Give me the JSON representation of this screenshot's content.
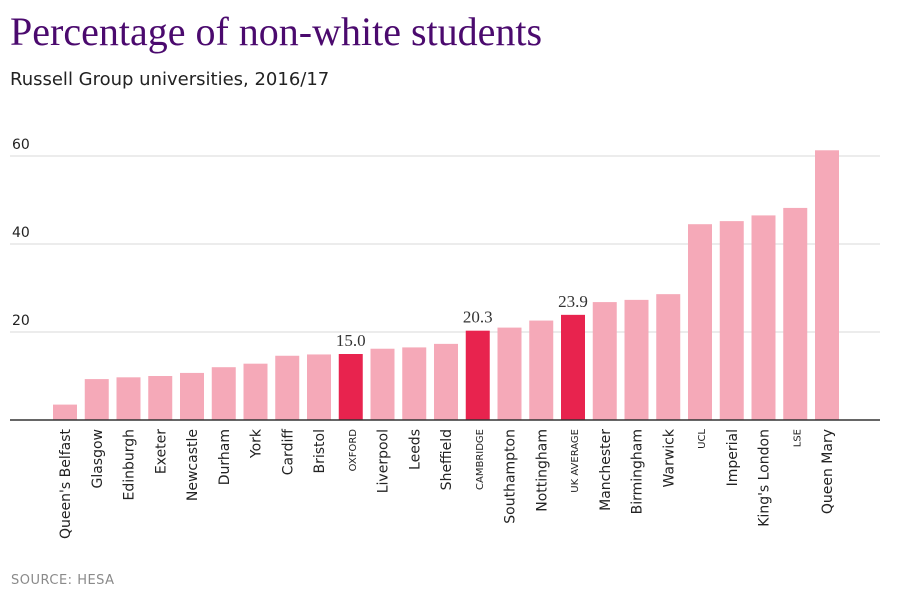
{
  "header": {
    "title": "Percentage of non-white students",
    "subtitle": "Russell Group universities, 2016/17"
  },
  "footer": {
    "source": "SOURCE: HESA"
  },
  "colors": {
    "bar": "#f5a9b8",
    "highlight": "#e8234e",
    "grid": "#d9d9d9",
    "axis": "#333333",
    "title": "#4b0a6e"
  },
  "chart_data": {
    "type": "bar",
    "title": "Percentage of non-white students",
    "subtitle": "Russell Group universities, 2016/17",
    "xlabel": "",
    "ylabel": "",
    "ylim": [
      0,
      60
    ],
    "yticks": [
      20,
      40,
      60
    ],
    "grid": true,
    "categories": [
      "Queen's Belfast",
      "Glasgow",
      "Edinburgh",
      "Exeter",
      "Newcastle",
      "Durham",
      "York",
      "Cardiff",
      "Bristol",
      "OXFORD",
      "Liverpool",
      "Leeds",
      "Sheffield",
      "CAMBRIDGE",
      "Southampton",
      "Nottingham",
      "UK AVERAGE",
      "Manchester",
      "Birmingham",
      "Warwick",
      "UCL",
      "Imperial",
      "King's London",
      "LSE",
      "Queen Mary"
    ],
    "values": [
      3.5,
      9.3,
      9.7,
      10.0,
      10.7,
      12.0,
      12.8,
      14.6,
      14.9,
      15.0,
      16.2,
      16.5,
      17.3,
      20.3,
      21.0,
      22.6,
      23.9,
      26.8,
      27.3,
      28.6,
      44.5,
      45.2,
      46.5,
      48.2,
      61.3
    ],
    "highlighted": [
      "OXFORD",
      "CAMBRIDGE",
      "UK AVERAGE"
    ],
    "data_labels": {
      "OXFORD": "15.0",
      "CAMBRIDGE": "20.3",
      "UK AVERAGE": "23.9"
    }
  }
}
